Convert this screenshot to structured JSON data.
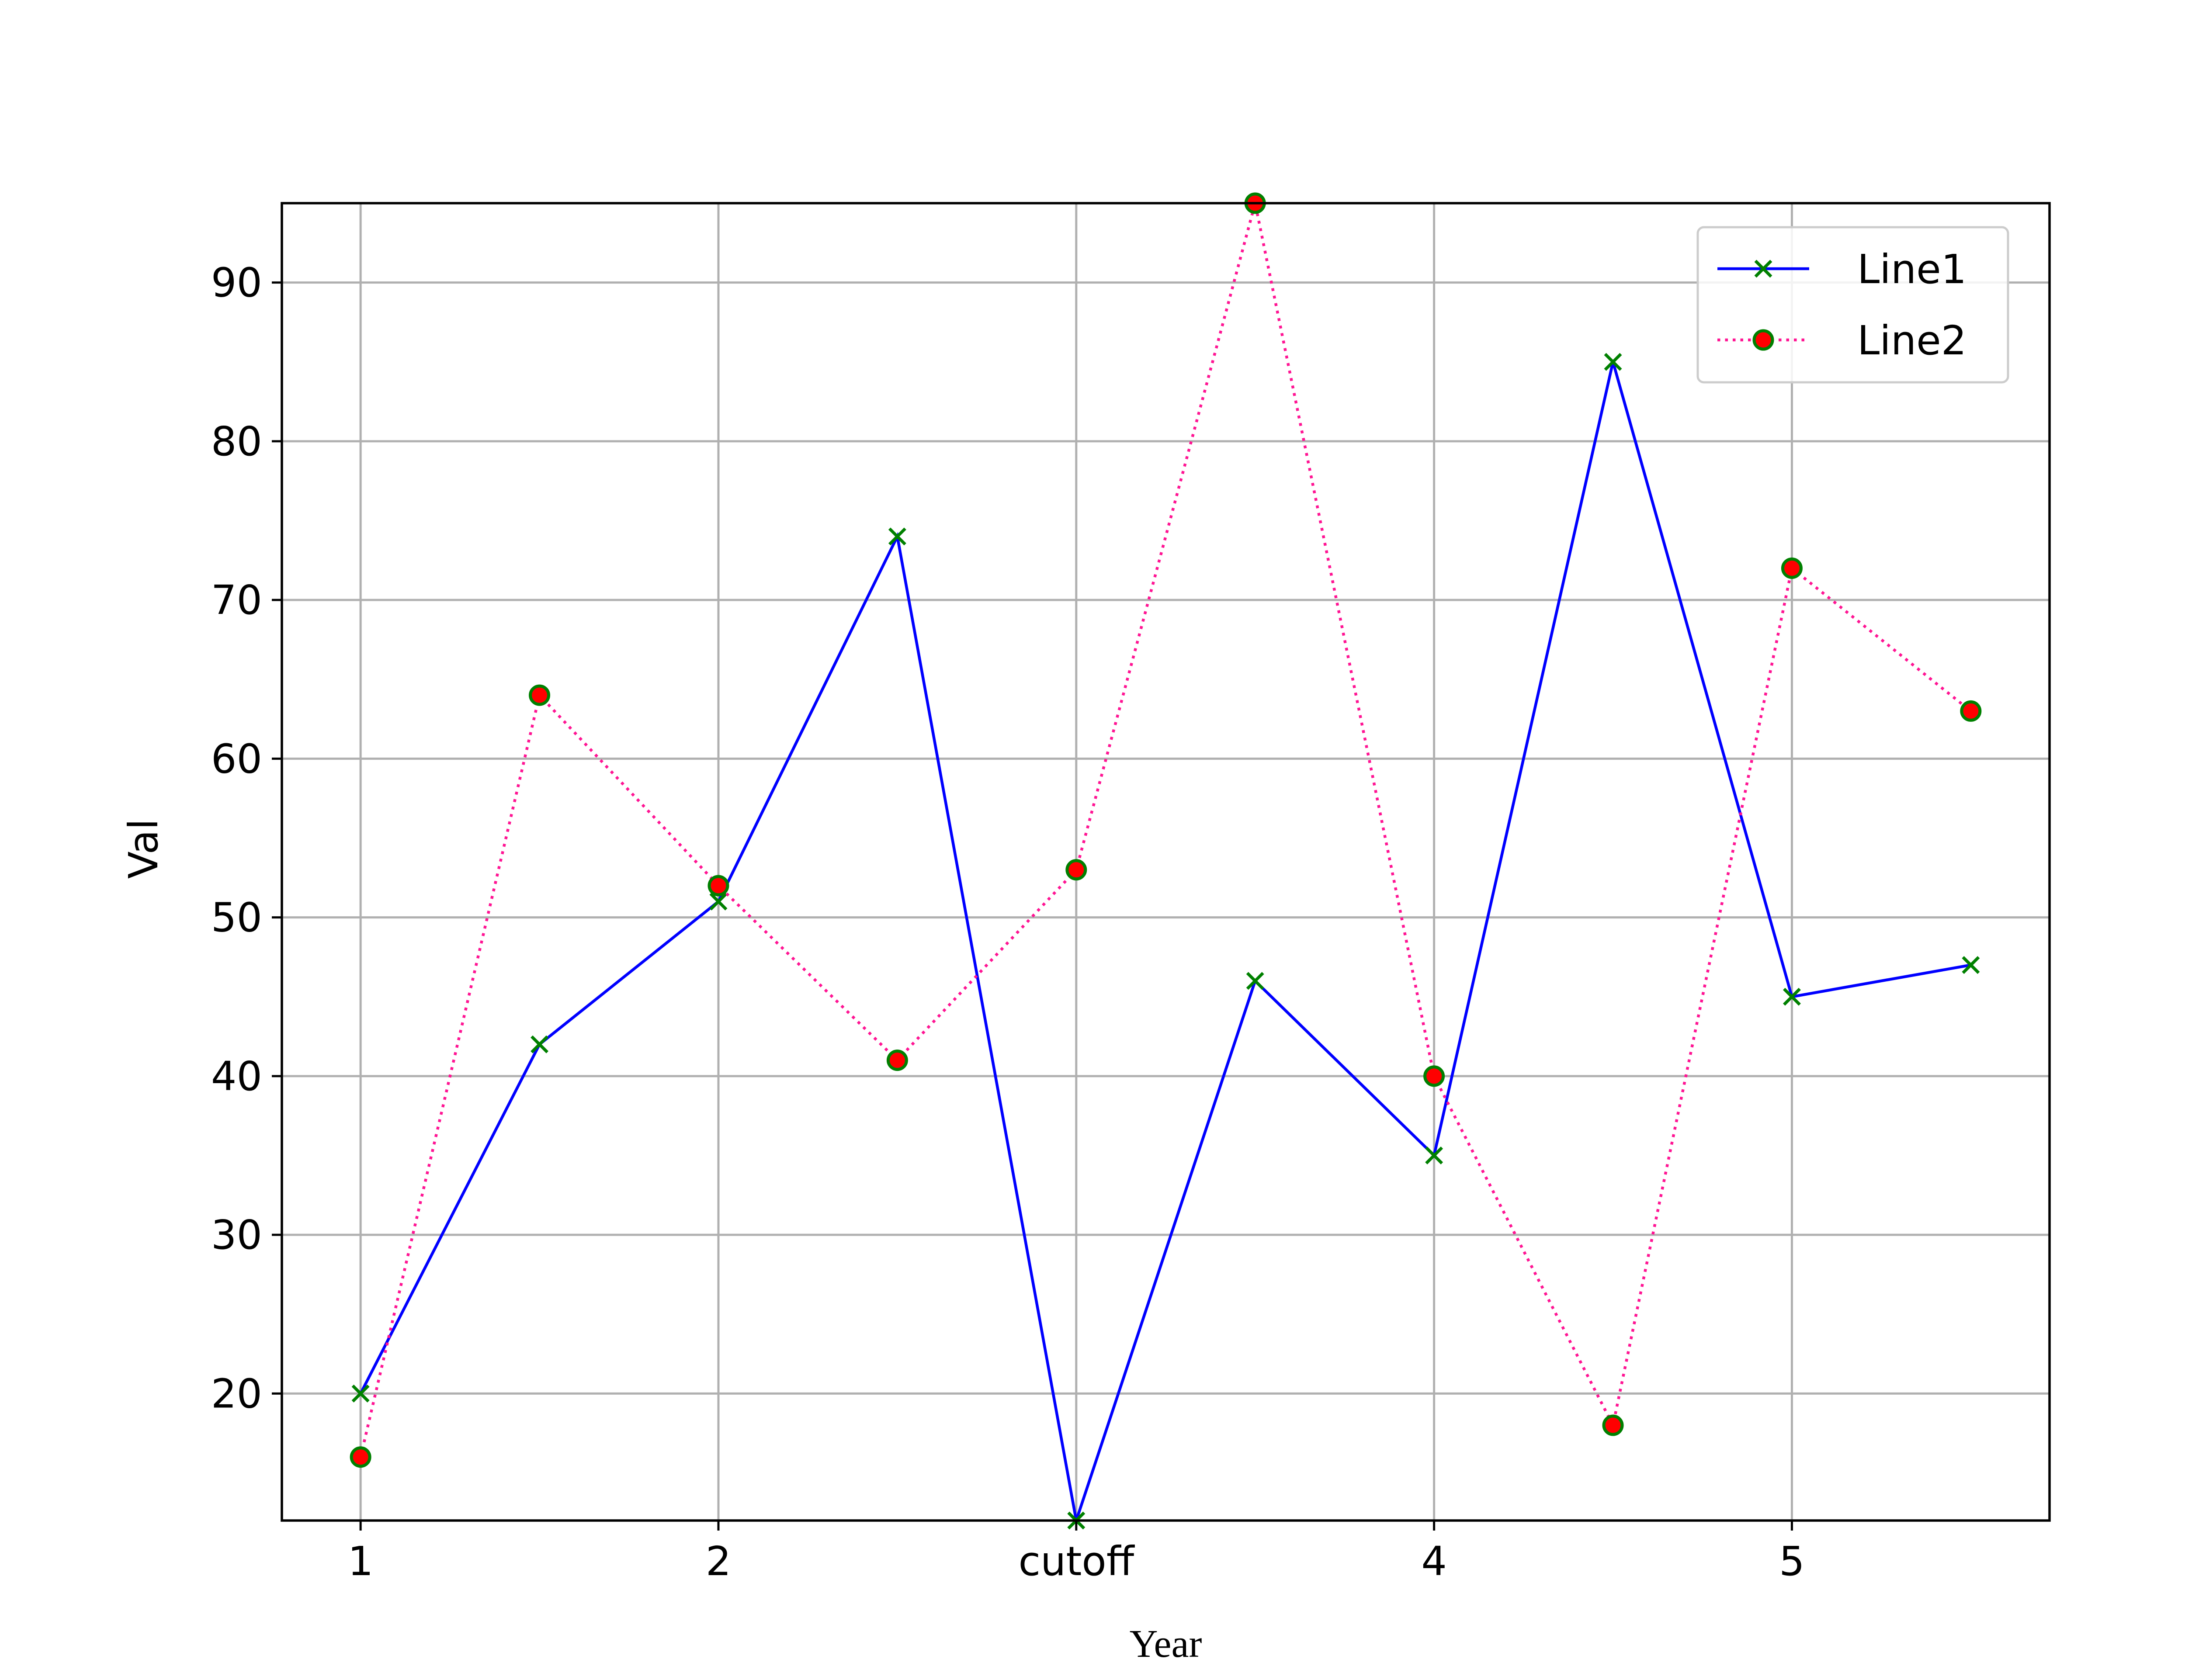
{
  "chart_data": {
    "type": "line",
    "title": "",
    "xlabel": "Year",
    "ylabel": "Val",
    "x": [
      1,
      1.5,
      2,
      2.5,
      3,
      3.5,
      4,
      4.5,
      5,
      5.5
    ],
    "xticks": [
      {
        "value": 1,
        "label": "1"
      },
      {
        "value": 2,
        "label": "2"
      },
      {
        "value": 3,
        "label": "cutoff"
      },
      {
        "value": 4,
        "label": "4"
      },
      {
        "value": 5,
        "label": "5"
      }
    ],
    "yticks": [
      20,
      30,
      40,
      50,
      60,
      70,
      80,
      90
    ],
    "xlim": [
      0.78,
      5.72
    ],
    "ylim": [
      12,
      95
    ],
    "grid": true,
    "legend_position": "top-right",
    "series": [
      {
        "name": "Line1",
        "values": [
          20,
          42,
          51,
          74,
          12,
          46,
          35,
          85,
          45,
          47
        ],
        "line_color": "#0000ff",
        "line_style": "solid",
        "marker": "x",
        "marker_color": "#008000"
      },
      {
        "name": "Line2",
        "values": [
          16,
          64,
          52,
          41,
          53,
          95,
          40,
          18,
          72,
          63
        ],
        "line_color": "#ff1493",
        "line_style": "dotted",
        "marker": "circle",
        "marker_face_color": "#ff0000",
        "marker_edge_color": "#008000"
      }
    ]
  }
}
